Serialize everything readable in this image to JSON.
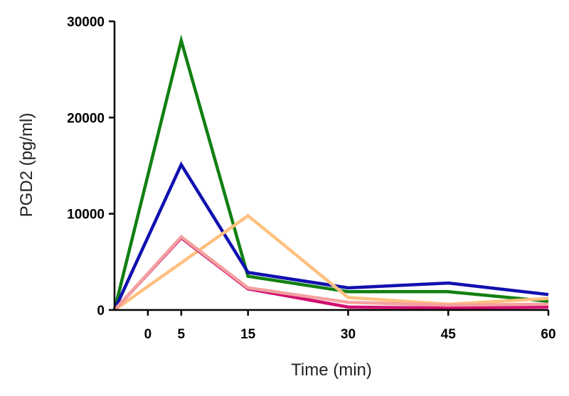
{
  "chart_data": {
    "type": "line",
    "title": "",
    "xlabel": "Time (min)",
    "ylabel": "PGD2 (pg/ml)",
    "x_ticks": [
      0,
      5,
      15,
      30,
      45,
      60
    ],
    "y_ticks": [
      0,
      10000,
      20000,
      30000
    ],
    "x_tick_labels": [
      "0",
      "5",
      "15",
      "30",
      "45",
      "60"
    ],
    "y_tick_labels": [
      "0",
      "10000",
      "20000",
      "30000"
    ],
    "xlim": [
      -5,
      60
    ],
    "ylim": [
      0,
      30000
    ],
    "grid": false,
    "legend": "none",
    "series": [
      {
        "color": "#118011",
        "points": [
          [
            -5,
            0
          ],
          [
            5,
            28000
          ],
          [
            15,
            3500
          ],
          [
            30,
            1900
          ],
          [
            45,
            1900
          ],
          [
            60,
            900
          ]
        ]
      },
      {
        "color": "#1010b0",
        "points": [
          [
            -5,
            0
          ],
          [
            5,
            15100
          ],
          [
            15,
            3900
          ],
          [
            30,
            2300
          ],
          [
            45,
            2800
          ],
          [
            60,
            1600
          ]
        ]
      },
      {
        "color": "#ffc080",
        "points": [
          [
            -5,
            0
          ],
          [
            15,
            9800
          ],
          [
            30,
            1300
          ],
          [
            45,
            600
          ],
          [
            60,
            1200
          ]
        ]
      },
      {
        "color": "#d01070",
        "points": [
          [
            -5,
            0
          ],
          [
            5,
            7500
          ],
          [
            15,
            2200
          ],
          [
            30,
            300
          ],
          [
            45,
            200
          ],
          [
            60,
            300
          ]
        ]
      },
      {
        "color": "#f4a0a0",
        "points": [
          [
            -5,
            0
          ],
          [
            5,
            7600
          ],
          [
            15,
            2300
          ],
          [
            30,
            800
          ],
          [
            45,
            500
          ],
          [
            60,
            600
          ]
        ]
      }
    ]
  }
}
